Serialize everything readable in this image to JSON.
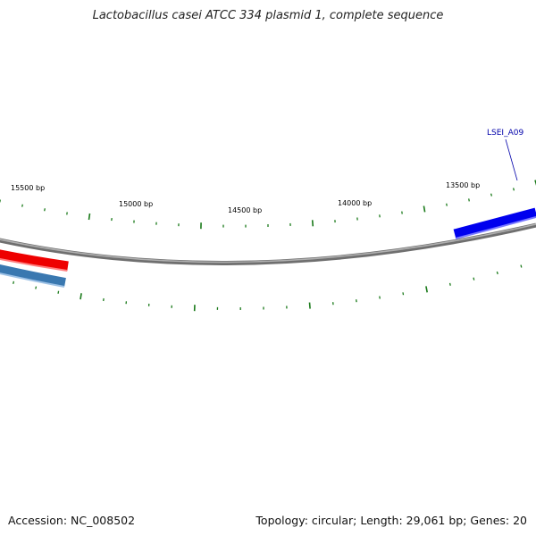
{
  "title": "Lactobacillus casei ATCC 334 plasmid 1, complete sequence",
  "accession": "Accession: NC_008502",
  "info": "Topology: circular; Length: 29,061 bp; Genes: 20",
  "scale": {
    "tick_color": "#1a7a1a",
    "labels": [
      {
        "bp": 15500,
        "text": "15500 bp"
      },
      {
        "bp": 15000,
        "text": "15000 bp"
      },
      {
        "bp": 14500,
        "text": "14500 bp"
      },
      {
        "bp": 14000,
        "text": "14000 bp"
      },
      {
        "bp": 13500,
        "text": "13500 bp"
      }
    ]
  },
  "genes": [
    {
      "label": "LSEI_A09",
      "color": "#0000ee",
      "track": "outer-right"
    },
    {
      "label": "",
      "color": "#ee0000",
      "track": "outer-left"
    },
    {
      "label": "",
      "color": "#3a78b0",
      "track": "inner-left"
    }
  ],
  "colors": {
    "backbone": "#808080",
    "gene_plus_right": "#0000ee",
    "gene_plus_left": "#ee0000",
    "gene_minus_left": "#3a78b0"
  }
}
